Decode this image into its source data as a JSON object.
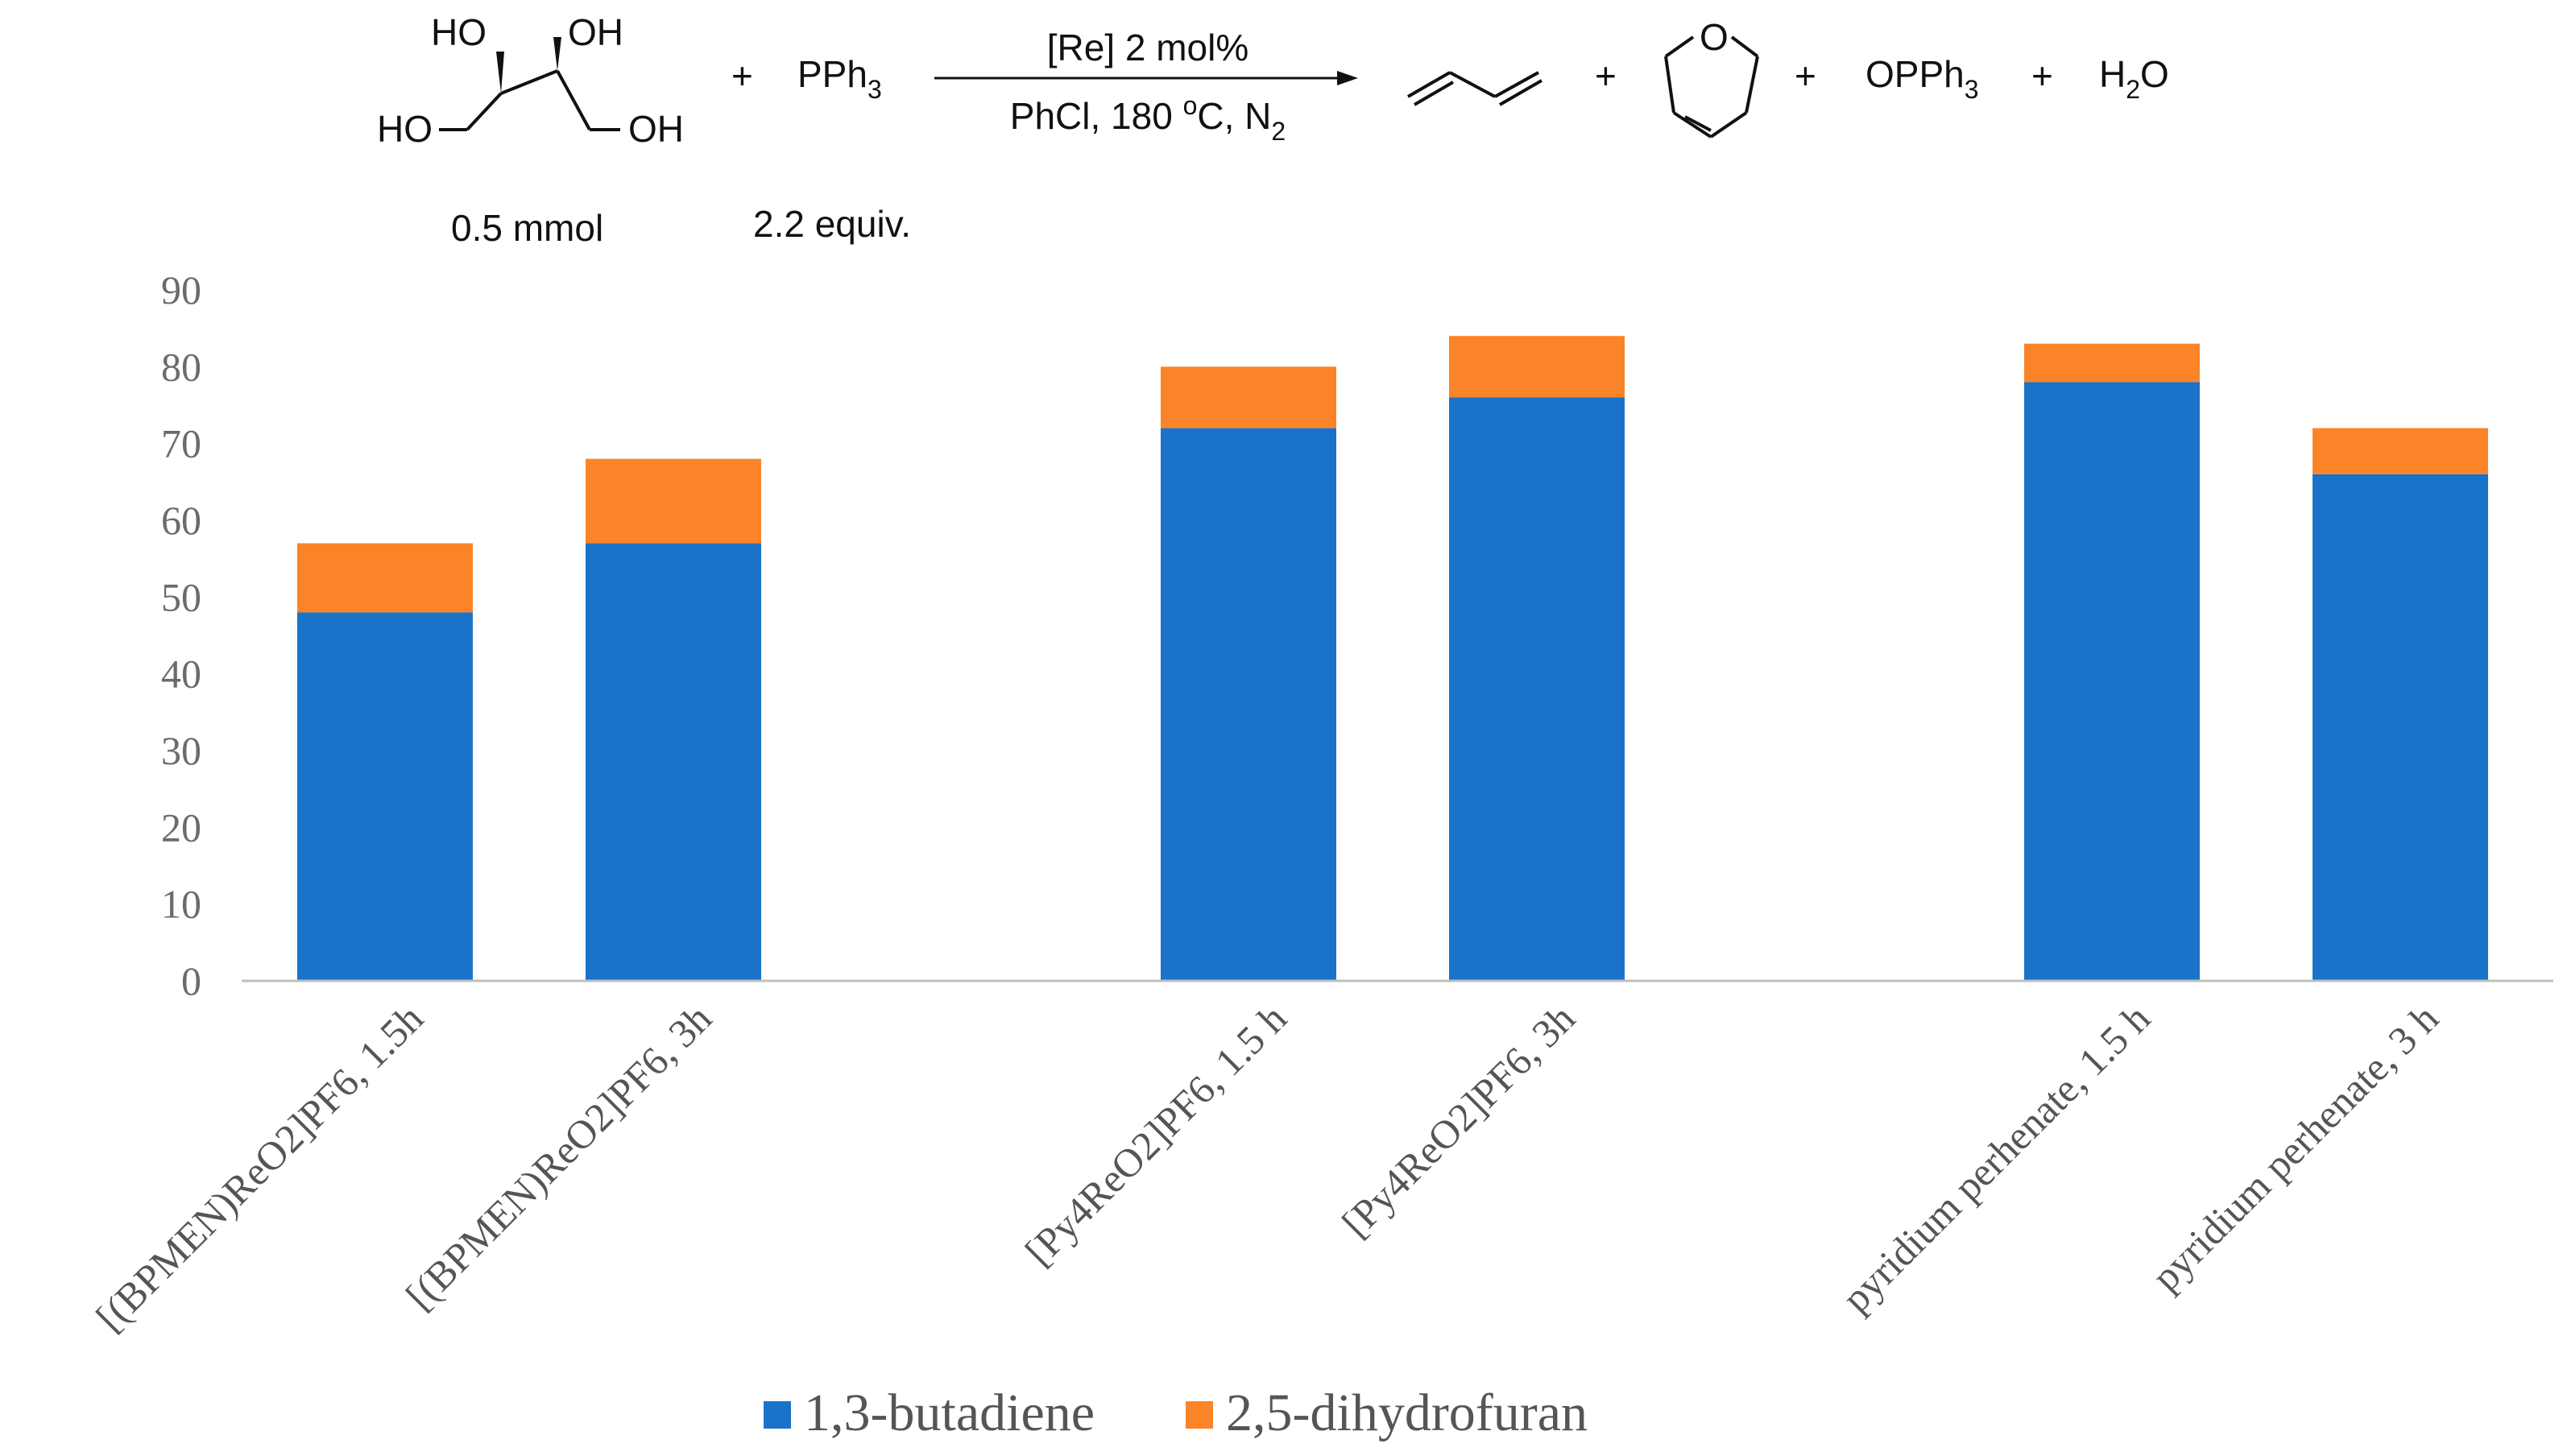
{
  "reaction": {
    "reagent_1": {
      "groups": {
        "ho_top_left": "HO",
        "oh_top_right": "OH",
        "ho_bottom_left": "HO",
        "oh_bottom_right": "OH"
      },
      "amount": "0.5 mmol"
    },
    "reagent_2": {
      "formula": "PPh",
      "subscript": "3",
      "amount": "2.2 equiv."
    },
    "conditions_top": "[Re] 2 mol%",
    "conditions_bottom_main": "PhCl, 180 ",
    "conditions_bottom_sup": "o",
    "conditions_bottom_unit": "C, N",
    "conditions_bottom_sub": "2",
    "dihydrofuran_atom": "O",
    "byproduct_1": {
      "formula": "OPPh",
      "subscript": "3"
    },
    "byproduct_2": {
      "h": "H",
      "subscript": "2",
      "o": "O"
    },
    "plus_sign": "+"
  },
  "chart_data": {
    "type": "bar",
    "stacked": true,
    "categories": [
      "[(BPMEN)ReO2]PF6, 1.5h",
      "[(BPMEN)ReO2]PF6, 3h",
      "[Py4ReO2]PF6, 1.5 h",
      "[Py4ReO2]PF6, 3h",
      "pyridium perhenate, 1.5 h",
      "pyridium perhenate, 3 h"
    ],
    "series": [
      {
        "name": "1,3-butadiene",
        "color": "#1a73c8",
        "values": [
          48,
          57,
          72,
          76,
          78,
          66
        ]
      },
      {
        "name": "2,5-dihydrofuran",
        "color": "#fb8428",
        "values": [
          9,
          11,
          8,
          8,
          5,
          6
        ]
      }
    ],
    "ylim": [
      0,
      90
    ],
    "yticks": [
      0,
      10,
      20,
      30,
      40,
      50,
      60,
      70,
      80,
      90
    ],
    "title": "",
    "xlabel": "",
    "ylabel": "",
    "grid": false,
    "legend_position": "bottom"
  }
}
